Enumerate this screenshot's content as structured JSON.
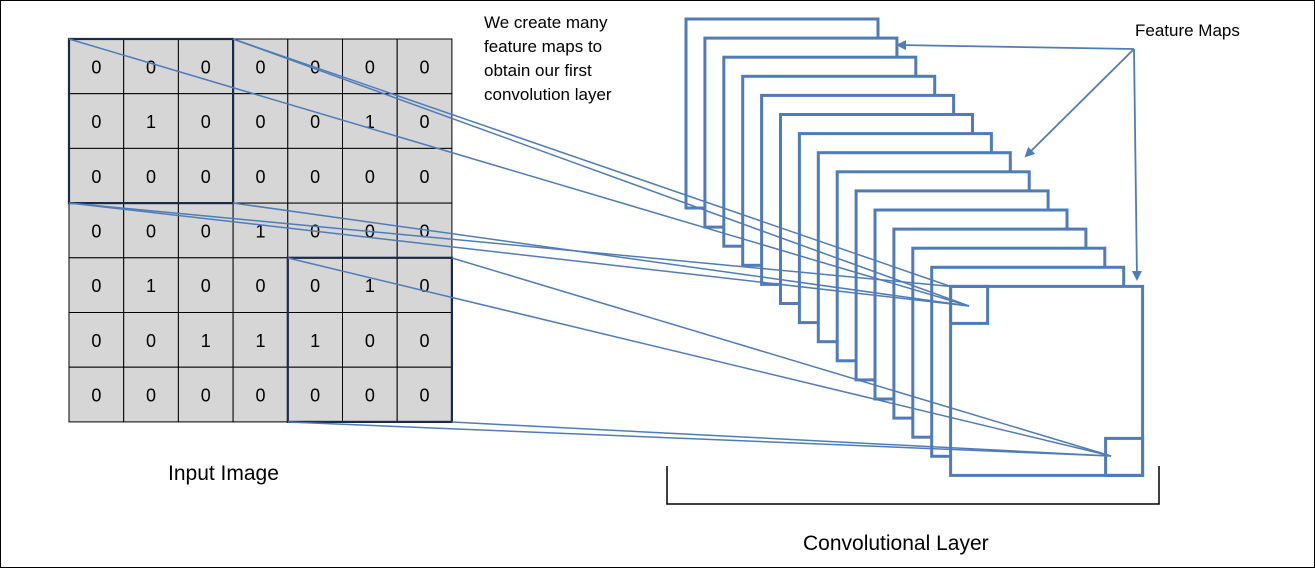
{
  "labels": {
    "note_lines": [
      "We create many",
      "feature maps to",
      "obtain our first",
      "convolution layer"
    ],
    "feature_maps": "Feature Maps",
    "input_image": "Input Image",
    "convolutional_layer": "Convolutional Layer"
  },
  "input_image": {
    "grid": [
      [
        0,
        0,
        0,
        0,
        0,
        0,
        0
      ],
      [
        0,
        1,
        0,
        0,
        0,
        1,
        0
      ],
      [
        0,
        0,
        0,
        0,
        0,
        0,
        0
      ],
      [
        0,
        0,
        0,
        1,
        0,
        0,
        0
      ],
      [
        0,
        1,
        0,
        0,
        0,
        1,
        0
      ],
      [
        0,
        0,
        1,
        1,
        1,
        0,
        0
      ],
      [
        0,
        0,
        0,
        0,
        0,
        0,
        0
      ]
    ],
    "highlighted_windows": [
      {
        "row": 0,
        "col": 0,
        "size": 3
      },
      {
        "row": 4,
        "col": 4,
        "size": 3
      }
    ]
  },
  "feature_map_count": 15,
  "colors": {
    "cell_fill": "#d6d6d6",
    "grid_line": "#000000",
    "diagram_blue": "#4f7cb8"
  }
}
